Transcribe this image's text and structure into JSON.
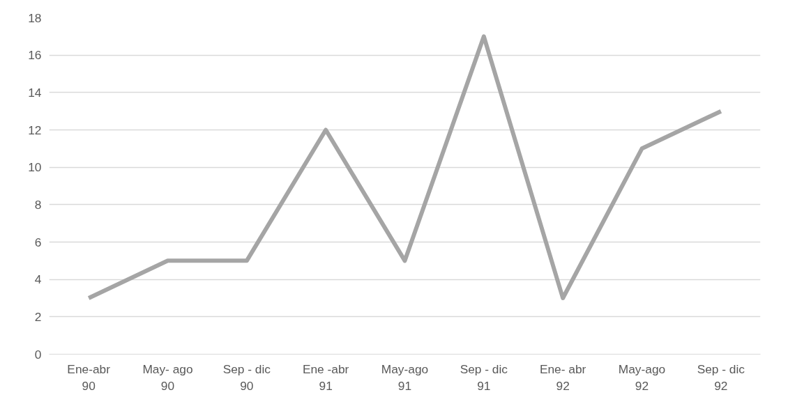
{
  "chart_data": {
    "type": "line",
    "categories": [
      "Ene-abr\n90",
      "May- ago\n90",
      "Sep - dic\n90",
      "Ene -abr\n91",
      "May-ago\n91",
      "Sep - dic\n91",
      "Ene- abr\n92",
      "May-ago\n92",
      "Sep - dic\n92"
    ],
    "series": [
      {
        "color": "#a5a5a5",
        "values": [
          3,
          5,
          5,
          12,
          5,
          17,
          3,
          11,
          13
        ]
      }
    ],
    "ylim": [
      0,
      18
    ],
    "yticks": [
      0,
      2,
      4,
      6,
      8,
      10,
      12,
      14,
      16,
      18
    ],
    "grid": "y",
    "marker": "none",
    "line_style": "solid"
  }
}
